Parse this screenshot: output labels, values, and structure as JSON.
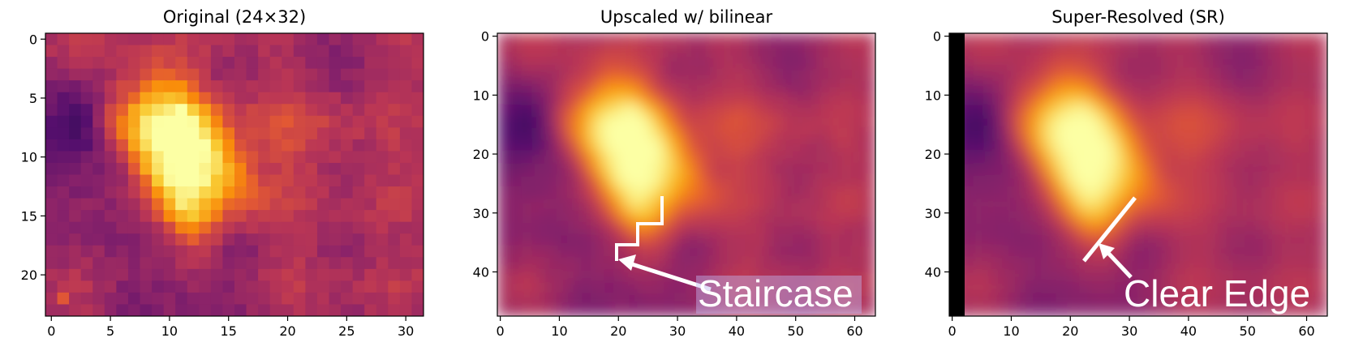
{
  "chart_data": [
    {
      "type": "heatmap",
      "title": "Original (24×32)",
      "colormap": "inferno",
      "shape": [
        24,
        32
      ],
      "xlim": [
        -0.5,
        31.5
      ],
      "ylim": [
        23.5,
        -0.5
      ],
      "xticks": [
        0,
        5,
        10,
        15,
        20,
        25,
        30
      ],
      "yticks": [
        0,
        5,
        10,
        15,
        20
      ],
      "rendering": "pixelated",
      "features": [
        {
          "kind": "bright_blob",
          "center": [
            12,
            10
          ],
          "description": "elongated hot region"
        },
        {
          "kind": "dark_spot",
          "center": [
            2,
            7
          ]
        }
      ]
    },
    {
      "type": "heatmap",
      "title": "Upscaled w/ bilinear",
      "colormap": "inferno",
      "shape": [
        48,
        64
      ],
      "xlim": [
        -0.5,
        63.5
      ],
      "ylim": [
        47.5,
        -0.5
      ],
      "xticks": [
        0,
        10,
        20,
        30,
        40,
        50,
        60
      ],
      "yticks": [
        0,
        10,
        20,
        30,
        40
      ],
      "rendering": "smooth",
      "annotation": {
        "text": "Staircase",
        "arrow_tip": [
          19,
          38
        ]
      }
    },
    {
      "type": "heatmap",
      "title": "Super-Resolved (SR)",
      "colormap": "inferno",
      "shape": [
        48,
        64
      ],
      "xlim": [
        -0.5,
        63.5
      ],
      "ylim": [
        47.5,
        -0.5
      ],
      "xticks": [
        0,
        10,
        20,
        30,
        40,
        50,
        60
      ],
      "yticks": [
        0,
        10,
        20,
        30,
        40
      ],
      "rendering": "smooth",
      "annotation": {
        "text": "Clear Edge",
        "arrow_tip": [
          25,
          35
        ]
      }
    }
  ]
}
